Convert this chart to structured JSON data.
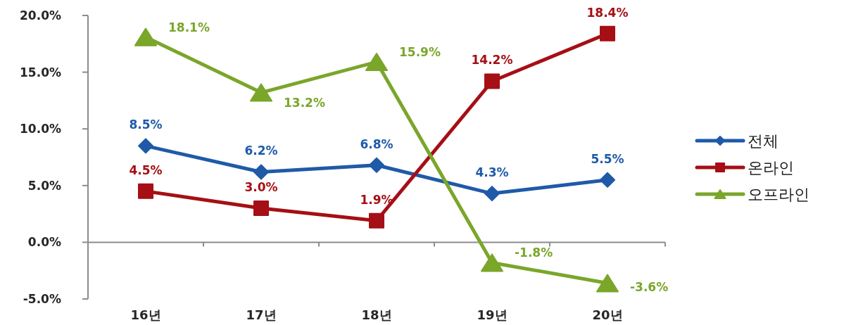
{
  "chart_data": {
    "type": "line",
    "categories": [
      "16년",
      "17년",
      "18년",
      "19년",
      "20년"
    ],
    "series": [
      {
        "name": "전체",
        "color": "#1f5aa8",
        "marker": "diamond",
        "values": [
          8.5,
          6.2,
          6.8,
          4.3,
          5.5
        ],
        "value_labels": [
          "8.5%",
          "6.2%",
          "6.8%",
          "4.3%",
          "5.5%"
        ]
      },
      {
        "name": "온라인",
        "color": "#a50f15",
        "marker": "square",
        "values": [
          4.5,
          3.0,
          1.9,
          14.2,
          18.4
        ],
        "value_labels": [
          "4.5%",
          "3.0%",
          "1.9%",
          "14.2%",
          "18.4%"
        ]
      },
      {
        "name": "오프라인",
        "color": "#7aa62a",
        "marker": "triangle",
        "values": [
          18.1,
          13.2,
          15.9,
          -1.8,
          -3.6
        ],
        "value_labels": [
          "18.1%",
          "13.2%",
          "15.9%",
          "-1.8%",
          "-3.6%"
        ]
      }
    ],
    "ylim": [
      -5,
      20
    ],
    "yticks": [
      {
        "value": -5,
        "label": "-5.0%"
      },
      {
        "value": 0,
        "label": "0.0%"
      },
      {
        "value": 5,
        "label": "5.0%"
      },
      {
        "value": 10,
        "label": "10.0%"
      },
      {
        "value": 15,
        "label": "15.0%"
      },
      {
        "value": 20,
        "label": "20.0%"
      }
    ],
    "legend": "right",
    "line_style": "solid"
  }
}
